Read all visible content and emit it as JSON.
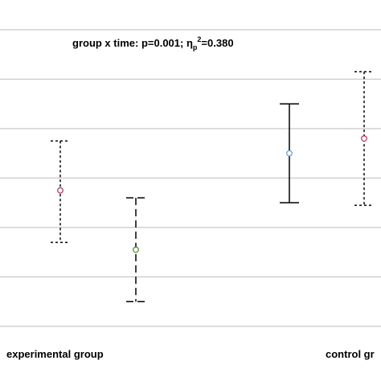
{
  "chart_data": {
    "type": "scatter",
    "annotation": {
      "prefix": "group x time: p=0.001; η",
      "sub": "p",
      "sup": "2",
      "suffix": "=0.380"
    },
    "group_labels": [
      "experimental group",
      "control gr"
    ],
    "ylim": [
      0,
      6.6
    ],
    "grid": true,
    "gridlines": [
      0,
      1,
      2,
      3,
      4,
      5,
      6
    ],
    "points": [
      {
        "group": "experimental group",
        "mean": 2.75,
        "lower": 1.7,
        "upper": 3.75,
        "color": "#b03050",
        "line": "short-dash"
      },
      {
        "group": "experimental group",
        "mean": 1.55,
        "lower": 0.5,
        "upper": 2.6,
        "color": "#3c8c1c",
        "line": "long-dash"
      },
      {
        "group": "control gr",
        "mean": 3.5,
        "lower": 2.5,
        "upper": 4.5,
        "color": "#5b9bd5",
        "line": "solid"
      },
      {
        "group": "control gr",
        "mean": 3.8,
        "lower": 2.45,
        "upper": 5.15,
        "color": "#b03050",
        "line": "short-dash"
      }
    ]
  }
}
